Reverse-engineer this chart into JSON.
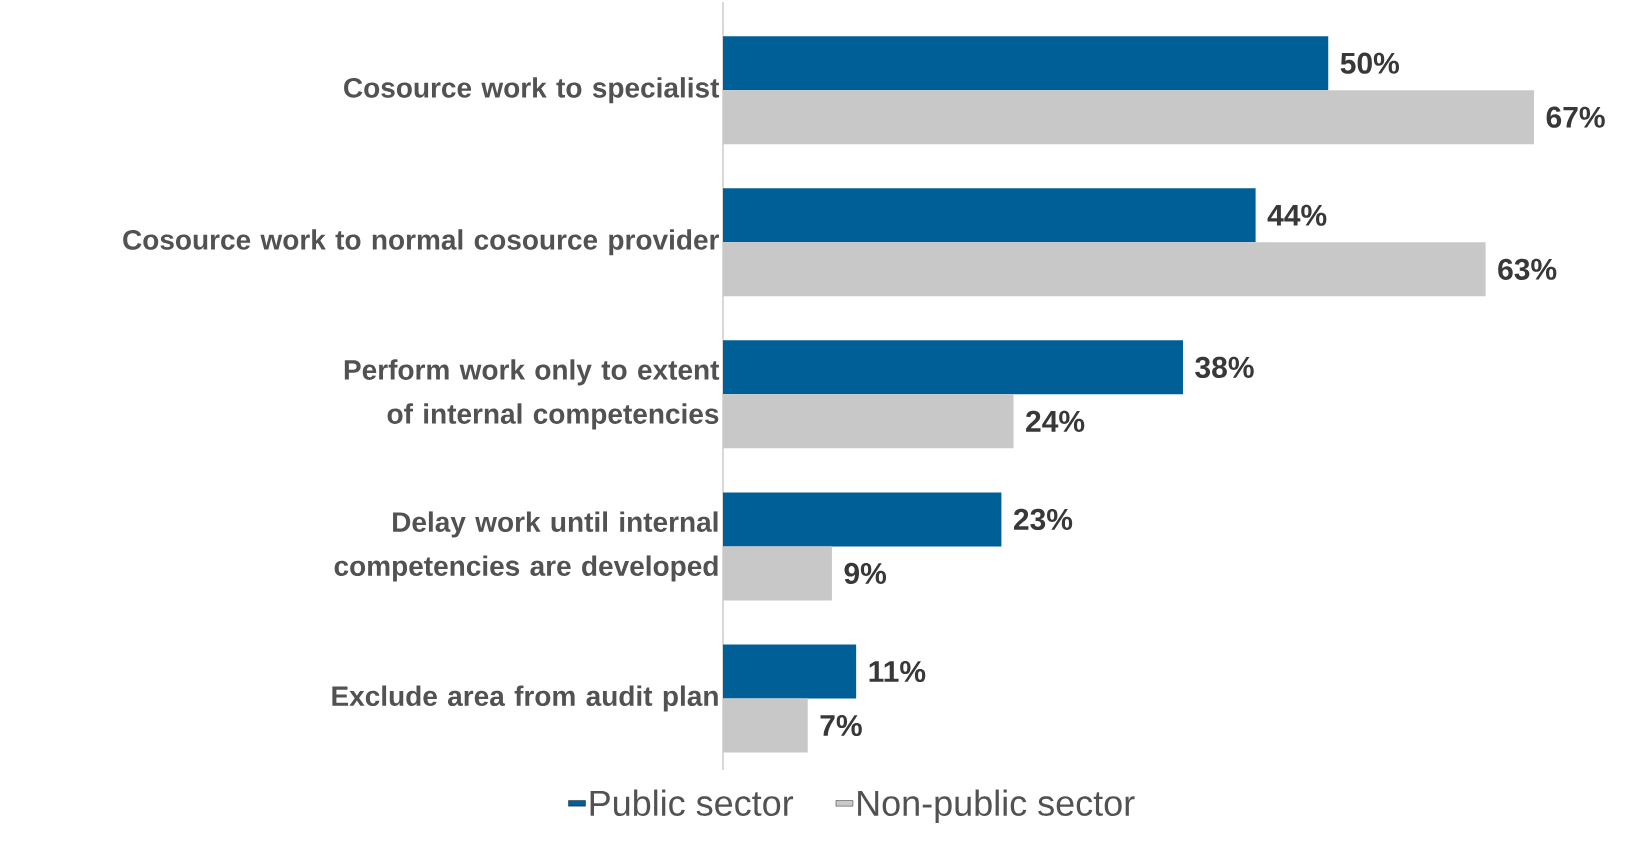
{
  "chart_data": {
    "type": "bar",
    "orientation": "horizontal",
    "categories": [
      "Cosource work to specialist",
      "Cosource work to normal cosource provider",
      "Perform work only to extent of internal competencies",
      "Delay work until internal competencies are developed",
      "Exclude area from audit plan"
    ],
    "series": [
      {
        "name": "Public sector",
        "color": "#005f96",
        "values": [
          50,
          44,
          38,
          23,
          11
        ],
        "value_labels": [
          "50%",
          "44%",
          "38%",
          "23%",
          "11%"
        ]
      },
      {
        "name": "Non-public sector",
        "color": "#c8c8c8",
        "values": [
          67,
          63,
          24,
          9,
          7
        ],
        "value_labels": [
          "67%",
          "63%",
          "24%",
          "9%",
          "7%"
        ]
      }
    ],
    "tick_labels": "y",
    "legend": "bottom"
  }
}
